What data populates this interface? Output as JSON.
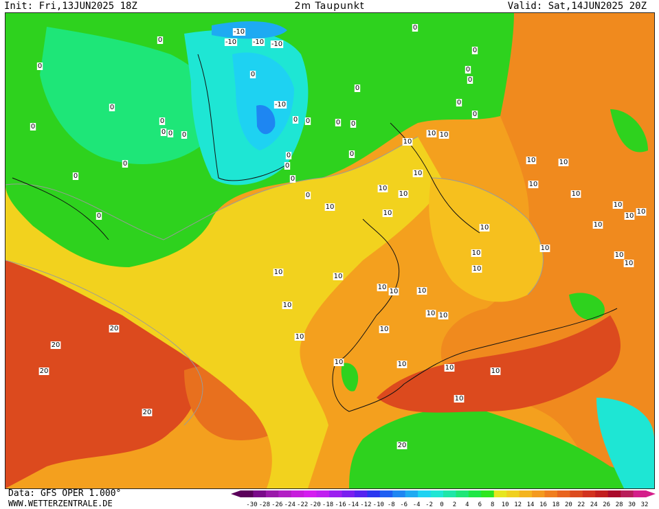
{
  "header": {
    "init": "Init: Fri,13JUN2025 18Z",
    "title": "2m Taupunkt",
    "valid": "Valid: Sat,14JUN2025 20Z"
  },
  "footer": {
    "data": "Data: GFS OPER 1.000°",
    "site": "WWW.WETTERZENTRALE.DE"
  },
  "legend": {
    "ticks": [
      "-30",
      "-28",
      "-26",
      "-24",
      "-22",
      "-20",
      "-18",
      "-16",
      "-14",
      "-12",
      "-10",
      "-8",
      "-6",
      "-4",
      "-2",
      "0",
      "2",
      "4",
      "6",
      "8",
      "10",
      "12",
      "14",
      "16",
      "18",
      "20",
      "22",
      "24",
      "26",
      "28",
      "30",
      "32"
    ],
    "colors": [
      "#5a005a",
      "#7a0a8a",
      "#9a18aa",
      "#b21ec4",
      "#c71cdc",
      "#d41cf0",
      "#c01ef0",
      "#9c1ef0",
      "#7a1ef0",
      "#5522f0",
      "#2a36f0",
      "#1e5ef2",
      "#1e86f2",
      "#1eaaf2",
      "#1ed2f2",
      "#1ee6d4",
      "#1ee6a8",
      "#1ee678",
      "#1ee646",
      "#2ee61e",
      "#e6e61e",
      "#f0d01e",
      "#f4b41e",
      "#f49a1e",
      "#f07e1e",
      "#e8641e",
      "#dc4a1e",
      "#d2321e",
      "#c21e1e",
      "#aa0a2a",
      "#b81e5a",
      "#d41e8a"
    ]
  },
  "contour_labels": [
    {
      "text": "-10"
    },
    {
      "text": "-10"
    },
    {
      "text": "-10"
    },
    {
      "text": "-10"
    },
    {
      "text": "-10"
    },
    {
      "text": "0"
    },
    {
      "text": "0"
    },
    {
      "text": "0"
    },
    {
      "text": "0"
    },
    {
      "text": "0"
    },
    {
      "text": "0"
    },
    {
      "text": "0"
    },
    {
      "text": "0"
    },
    {
      "text": "0"
    },
    {
      "text": "0"
    },
    {
      "text": "0"
    },
    {
      "text": "0"
    },
    {
      "text": "0"
    },
    {
      "text": "0"
    },
    {
      "text": "0"
    },
    {
      "text": "0"
    },
    {
      "text": "0"
    },
    {
      "text": "0"
    },
    {
      "text": "0"
    },
    {
      "text": "0"
    },
    {
      "text": "0"
    },
    {
      "text": "0"
    },
    {
      "text": "0"
    },
    {
      "text": "0"
    },
    {
      "text": "0"
    },
    {
      "text": "0"
    },
    {
      "text": "0"
    },
    {
      "text": "0"
    },
    {
      "text": "10"
    },
    {
      "text": "10"
    },
    {
      "text": "10"
    },
    {
      "text": "10"
    },
    {
      "text": "10"
    },
    {
      "text": "10"
    },
    {
      "text": "10"
    },
    {
      "text": "10"
    },
    {
      "text": "10"
    },
    {
      "text": "10"
    },
    {
      "text": "10"
    },
    {
      "text": "10"
    },
    {
      "text": "10"
    },
    {
      "text": "10"
    },
    {
      "text": "10"
    },
    {
      "text": "10"
    },
    {
      "text": "10"
    },
    {
      "text": "10"
    },
    {
      "text": "10"
    },
    {
      "text": "10"
    },
    {
      "text": "10"
    },
    {
      "text": "10"
    },
    {
      "text": "10"
    },
    {
      "text": "10"
    },
    {
      "text": "10"
    },
    {
      "text": "10"
    },
    {
      "text": "10"
    },
    {
      "text": "10"
    },
    {
      "text": "10"
    },
    {
      "text": "10"
    },
    {
      "text": "10"
    },
    {
      "text": "10"
    },
    {
      "text": "10"
    },
    {
      "text": "10"
    },
    {
      "text": "10"
    },
    {
      "text": "10"
    },
    {
      "text": "10"
    },
    {
      "text": "20"
    },
    {
      "text": "20"
    },
    {
      "text": "20"
    },
    {
      "text": "20"
    },
    {
      "text": "20"
    }
  ]
}
